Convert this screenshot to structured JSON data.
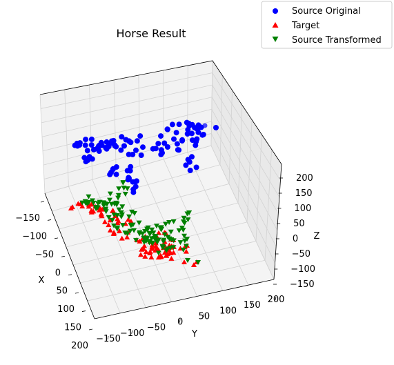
{
  "chart_data": {
    "type": "scatter",
    "projection": "3d",
    "title": "Horse Result",
    "xlabel": "X",
    "ylabel": "Y",
    "zlabel": "Z",
    "x_ticks": [
      "−150",
      "−100",
      "−50",
      "0",
      "50",
      "100",
      "150",
      "200"
    ],
    "y_ticks": [
      "−150",
      "−100",
      "−50",
      "0",
      "50",
      "100",
      "150",
      "200"
    ],
    "z_ticks": [
      "−150",
      "−100",
      "−50",
      "0",
      "50",
      "100",
      "150",
      "200"
    ],
    "xlim": [
      -150,
      200
    ],
    "ylim": [
      -150,
      200
    ],
    "zlim": [
      -150,
      200
    ],
    "grid": true,
    "legend_position": "top-right",
    "series": [
      {
        "name": "Source Original",
        "marker": "circle",
        "color": "#0000ff"
      },
      {
        "name": "Target",
        "marker": "triangle-up",
        "color": "#ff0000"
      },
      {
        "name": "Source Transformed",
        "marker": "triangle-down",
        "color": "#008000"
      }
    ]
  }
}
